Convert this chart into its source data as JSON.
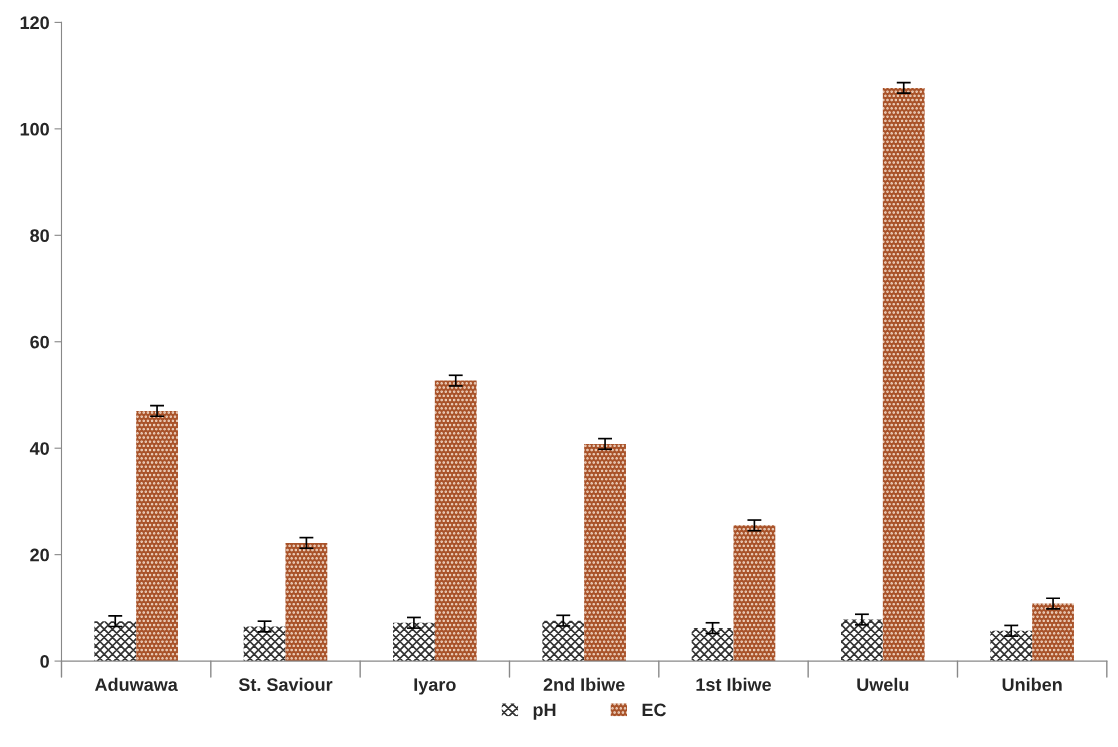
{
  "chart_data": {
    "type": "bar",
    "categories": [
      "Aduwawa",
      "St. Saviour",
      "Iyaro",
      "2nd Ibiwe",
      "1st Ibiwe",
      "Uwelu",
      "Uniben"
    ],
    "series": [
      {
        "name": "pH",
        "color": "#333333",
        "values": [
          7.5,
          6.5,
          7.2,
          7.6,
          6.2,
          7.8,
          5.7
        ],
        "errors": [
          1,
          1,
          1,
          1,
          1,
          1,
          1
        ]
      },
      {
        "name": "EC",
        "color": "#a9532a",
        "values": [
          47,
          22.2,
          52.7,
          40.8,
          25.5,
          107.7,
          10.8
        ],
        "errors": [
          1,
          1,
          1,
          1,
          1,
          1,
          1
        ]
      }
    ],
    "ylim": [
      0,
      120
    ],
    "yticks": [
      0,
      20,
      40,
      60,
      80,
      100,
      120
    ],
    "grid": false,
    "legend": "bottom"
  }
}
